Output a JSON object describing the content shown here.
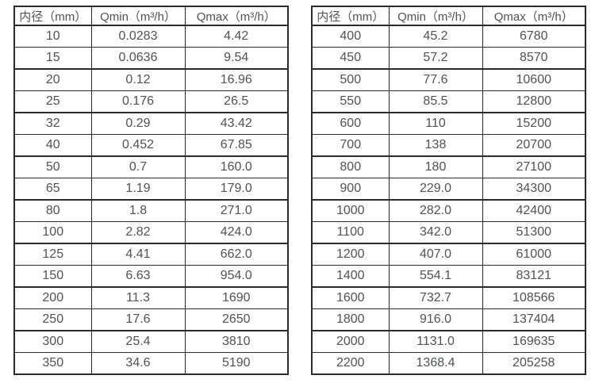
{
  "colors": {
    "background": "#ffffff",
    "border": "#2b2b2b",
    "text": "#515254"
  },
  "tables": [
    {
      "name": "flow-table-small-diameters",
      "headers": [
        "内径（mm）",
        "Qmin（m³/h）",
        "Qmax（m³/h）"
      ],
      "rows": [
        [
          "10",
          "0.0283",
          "4.42"
        ],
        [
          "15",
          "0.0636",
          "9.54"
        ],
        [
          "20",
          "0.12",
          "16.96"
        ],
        [
          "25",
          "0.176",
          "26.5"
        ],
        [
          "32",
          "0.29",
          "43.42"
        ],
        [
          "40",
          "0.452",
          "67.85"
        ],
        [
          "50",
          "0.7",
          "160.0"
        ],
        [
          "65",
          "1.19",
          "179.0"
        ],
        [
          "80",
          "1.8",
          "271.0"
        ],
        [
          "100",
          "2.82",
          "424.0"
        ],
        [
          "125",
          "4.41",
          "662.0"
        ],
        [
          "150",
          "6.63",
          "954.0"
        ],
        [
          "200",
          "11.3",
          "1690"
        ],
        [
          "250",
          "17.6",
          "2650"
        ],
        [
          "300",
          "25.4",
          "3810"
        ],
        [
          "350",
          "34.6",
          "5190"
        ]
      ]
    },
    {
      "name": "flow-table-large-diameters",
      "headers": [
        "内径（mm）",
        "Qmin（m³/h）",
        "Qmax（m³/h）"
      ],
      "rows": [
        [
          "400",
          "45.2",
          "6780"
        ],
        [
          "450",
          "57.2",
          "8570"
        ],
        [
          "500",
          "77.6",
          "10600"
        ],
        [
          "550",
          "85.5",
          "12800"
        ],
        [
          "600",
          "110",
          "15200"
        ],
        [
          "700",
          "138",
          "20700"
        ],
        [
          "800",
          "180",
          "27100"
        ],
        [
          "900",
          "229.0",
          "34300"
        ],
        [
          "1000",
          "282.0",
          "42400"
        ],
        [
          "1100",
          "342.0",
          "51300"
        ],
        [
          "1200",
          "407.0",
          "61000"
        ],
        [
          "1400",
          "554.1",
          "83121"
        ],
        [
          "1600",
          "732.7",
          "108566"
        ],
        [
          "1800",
          "916.0",
          "137404"
        ],
        [
          "2000",
          "1131.0",
          "169635"
        ],
        [
          "2200",
          "1368.4",
          "205258"
        ]
      ]
    }
  ],
  "chart_data": [
    {
      "type": "table",
      "title": "",
      "columns": [
        "内径（mm）",
        "Qmin（m³/h）",
        "Qmax（m³/h）"
      ],
      "rows": [
        [
          10,
          0.0283,
          4.42
        ],
        [
          15,
          0.0636,
          9.54
        ],
        [
          20,
          0.12,
          16.96
        ],
        [
          25,
          0.176,
          26.5
        ],
        [
          32,
          0.29,
          43.42
        ],
        [
          40,
          0.452,
          67.85
        ],
        [
          50,
          0.7,
          160.0
        ],
        [
          65,
          1.19,
          179.0
        ],
        [
          80,
          1.8,
          271.0
        ],
        [
          100,
          2.82,
          424.0
        ],
        [
          125,
          4.41,
          662.0
        ],
        [
          150,
          6.63,
          954.0
        ],
        [
          200,
          11.3,
          1690
        ],
        [
          250,
          17.6,
          2650
        ],
        [
          300,
          25.4,
          3810
        ],
        [
          350,
          34.6,
          5190
        ]
      ]
    },
    {
      "type": "table",
      "title": "",
      "columns": [
        "内径（mm）",
        "Qmin（m³/h）",
        "Qmax（m³/h）"
      ],
      "rows": [
        [
          400,
          45.2,
          6780
        ],
        [
          450,
          57.2,
          8570
        ],
        [
          500,
          77.6,
          10600
        ],
        [
          550,
          85.5,
          12800
        ],
        [
          600,
          110,
          15200
        ],
        [
          700,
          138,
          20700
        ],
        [
          800,
          180,
          27100
        ],
        [
          900,
          229.0,
          34300
        ],
        [
          1000,
          282.0,
          42400
        ],
        [
          1100,
          342.0,
          51300
        ],
        [
          1200,
          407.0,
          61000
        ],
        [
          1400,
          554.1,
          83121
        ],
        [
          1600,
          732.7,
          108566
        ],
        [
          1800,
          916.0,
          137404
        ],
        [
          2000,
          1131.0,
          169635
        ],
        [
          2200,
          1368.4,
          205258
        ]
      ]
    }
  ]
}
